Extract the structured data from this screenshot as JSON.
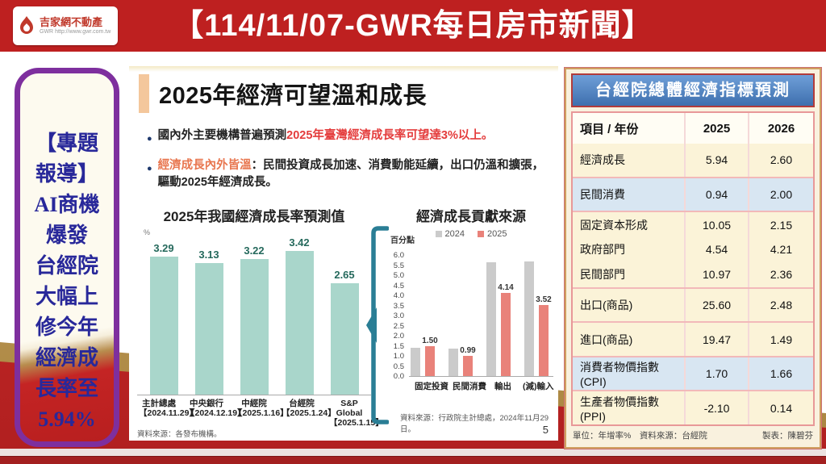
{
  "header": {
    "title": "【114/11/07-GWR每日房市新聞】",
    "logo": {
      "name": "吉家網不動產",
      "abbr": "GWR",
      "url_text": "http://www.gwr.com.tw"
    }
  },
  "sidebar": {
    "lines": [
      "【專題",
      "報導】",
      "AI商機",
      "爆發",
      "台經院",
      "大幅上",
      "修今年",
      "經濟成",
      "長率至",
      "5.94%"
    ]
  },
  "main": {
    "title": "2025年經濟可望溫和成長",
    "bullets": [
      {
        "parts": [
          {
            "text": "國內外主要機構普遍預測",
            "style": "dark"
          },
          {
            "text": "2025年臺灣經濟成長率可望達3%以上。",
            "style": "red"
          }
        ]
      },
      {
        "parts": [
          {
            "text": "經濟成長內外皆溫",
            "style": "orange"
          },
          {
            "text": "：民間投資成長加速、消費動能延續，出口仍溫和擴張，驅動2025年經濟成長。",
            "style": "dark"
          }
        ]
      }
    ],
    "page_number": "5"
  },
  "chart_data": [
    {
      "type": "bar",
      "title": "2025年我國經濟成長率預測值",
      "ylabel": "%",
      "categories": [
        {
          "name": "主計總處",
          "date": "【2024.11.29】"
        },
        {
          "name": "中央銀行",
          "date": "【2024.12.19】"
        },
        {
          "name": "中經院",
          "date": "【2025.1.16】"
        },
        {
          "name": "台經院",
          "date": "【2025.1.24】"
        },
        {
          "name": "S&P Global",
          "date": "【2025.1.15】"
        }
      ],
      "values": [
        3.29,
        3.13,
        3.22,
        3.42,
        2.65
      ],
      "value_labels": [
        "3.29",
        "3.13",
        "3.22",
        "3.42",
        "2.65"
      ],
      "bar_color": "#a9d6cb",
      "label_color": "#25695c",
      "source": "資料來源：各發布機構。"
    },
    {
      "type": "bar",
      "title": "經濟成長貢獻來源",
      "ylabel": "百分點",
      "ylim": [
        0,
        6.0
      ],
      "yticks": [
        "6.0",
        "5.5",
        "5.0",
        "4.5",
        "4.0",
        "3.5",
        "3.0",
        "2.5",
        "2.0",
        "1.5",
        "1.0",
        "0.5",
        "0.0"
      ],
      "categories": [
        "固定投資",
        "民間消費",
        "輸出",
        "(減)輸入"
      ],
      "series": [
        {
          "name": "2024",
          "color": "#cbcbcb",
          "values": [
            1.4,
            1.35,
            5.65,
            5.7
          ],
          "value_labels": null
        },
        {
          "name": "2025",
          "color": "#e9827a",
          "values": [
            1.5,
            0.99,
            4.14,
            3.52
          ],
          "value_labels": [
            "1.50",
            "0.99",
            "4.14",
            "3.52"
          ]
        }
      ],
      "legend_position": "top",
      "source": "資料來源：行政院主計總處，2024年11月29日。"
    }
  ],
  "right_panel": {
    "title": "台經院總體經濟指標預測",
    "table": {
      "columns": [
        "項目 / 年份",
        "2025",
        "2026"
      ],
      "rows": [
        {
          "label": "經濟成長",
          "y2025": "5.94",
          "y2026": "2.60",
          "highlight": false,
          "sep": true,
          "compact": false
        },
        {
          "label": "民間消費",
          "y2025": "0.94",
          "y2026": "2.00",
          "highlight": true,
          "sep": true,
          "compact": false
        },
        {
          "label": "固定資本形成",
          "y2025": "10.05",
          "y2026": "2.15",
          "highlight": false,
          "sep": true,
          "compact": true
        },
        {
          "label": "政府部門",
          "y2025": "4.54",
          "y2026": "4.21",
          "highlight": false,
          "sep": false,
          "compact": true
        },
        {
          "label": "民間部門",
          "y2025": "10.97",
          "y2026": "2.36",
          "highlight": false,
          "sep": false,
          "compact": true
        },
        {
          "label": "出口(商品)",
          "y2025": "25.60",
          "y2026": "2.48",
          "highlight": false,
          "sep": true,
          "compact": false
        },
        {
          "label": "進口(商品)",
          "y2025": "19.47",
          "y2026": "1.49",
          "highlight": false,
          "sep": true,
          "compact": false
        },
        {
          "label": "消費者物價指數 (CPI)",
          "y2025": "1.70",
          "y2026": "1.66",
          "highlight": true,
          "sep": true,
          "compact": false
        },
        {
          "label": "生產者物價指數 (PPI)",
          "y2025": "-2.10",
          "y2026": "0.14",
          "highlight": false,
          "sep": true,
          "compact": false
        }
      ]
    },
    "footer_left": "單位：年增率%　資料來源：台經院",
    "footer_right": "製表：陳碧芬"
  },
  "colors": {
    "header_red": "#be2020",
    "ribbon_red": "#c42828",
    "ribbon_tan": "#b8925a",
    "bottom_bar_red": "#a32020",
    "sidebar_purple": "#7e2f9e",
    "sidebar_text_blue": "#28289a",
    "accent_orange": "#f4c79c",
    "teal_bar": "#a9d6cb",
    "teal_label": "#25695c",
    "bracket_teal": "#2a7e95",
    "table_header_blue": "#4e82c4",
    "row_cream": "#fbf3d8",
    "row_blue": "#d8e6f2",
    "highlight_red_text": "#e43c3c"
  }
}
